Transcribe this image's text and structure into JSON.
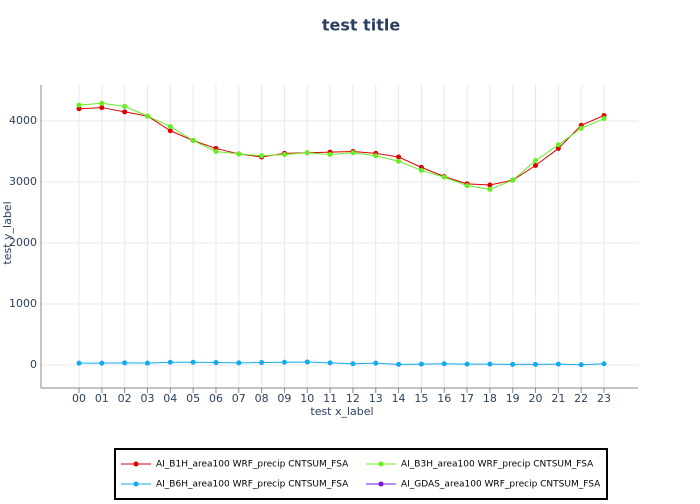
{
  "chart_data": {
    "type": "line",
    "title": "test title",
    "x_label": "test x_label",
    "y_label": "test y_label",
    "categories": [
      "00",
      "01",
      "02",
      "03",
      "04",
      "05",
      "06",
      "07",
      "08",
      "09",
      "10",
      "11",
      "12",
      "13",
      "14",
      "15",
      "16",
      "17",
      "18",
      "19",
      "20",
      "21",
      "22",
      "23"
    ],
    "series": [
      {
        "name": "AI_B1H_area100 WRF_precip CNTSUM_FSA",
        "color": "#e00000",
        "values": [
          4200,
          4220,
          4150,
          4080,
          3840,
          3680,
          3550,
          3460,
          3410,
          3470,
          3480,
          3490,
          3500,
          3470,
          3410,
          3240,
          3090,
          2970,
          2950,
          3030,
          3270,
          3550,
          3930,
          4090
        ]
      },
      {
        "name": "AI_B3H_area100 WRF_precip CNTSUM_FSA",
        "color": "#66ee22",
        "values": [
          4260,
          4290,
          4240,
          4080,
          3910,
          3680,
          3500,
          3460,
          3430,
          3450,
          3480,
          3450,
          3480,
          3430,
          3340,
          3190,
          3080,
          2940,
          2880,
          3030,
          3350,
          3610,
          3880,
          4040
        ]
      },
      {
        "name": "AI_B6H_area100 WRF_precip CNTSUM_FSA",
        "color": "#11aaee",
        "values": [
          30,
          30,
          35,
          30,
          45,
          45,
          40,
          35,
          40,
          45,
          50,
          35,
          20,
          30,
          10,
          15,
          20,
          15,
          15,
          10,
          10,
          15,
          5,
          20
        ]
      },
      {
        "name": "AI_GDAS_area100 WRF_precip CNTSUM_FSA",
        "color": "#7711ee",
        "values": [
          null,
          null,
          null,
          null,
          null,
          null,
          null,
          null,
          null,
          null,
          null,
          null,
          null,
          null,
          null,
          null,
          null,
          null,
          null,
          null,
          null,
          null,
          null,
          null
        ]
      }
    ],
    "ylim": [
      -377,
      4590
    ],
    "yticks": [
      0,
      1000,
      2000,
      3000,
      4000
    ],
    "grid": true,
    "legend": "bottom"
  }
}
